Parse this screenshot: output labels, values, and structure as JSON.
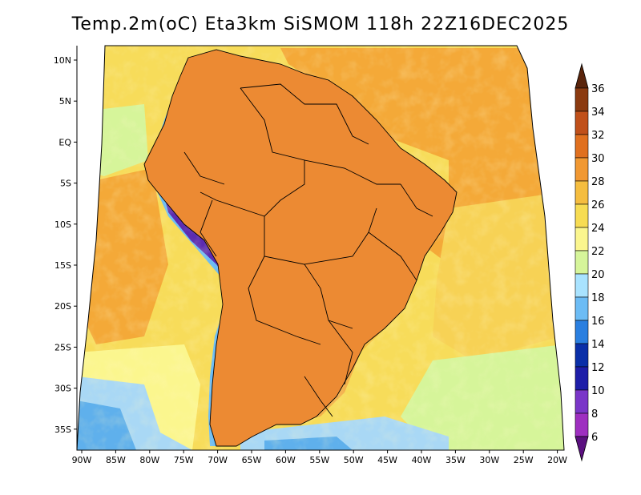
{
  "title": "Temp.2m(oC) Eta3km SiSMOM 118h 22Z16DEC2025",
  "y_ticks": [
    "10N",
    "5N",
    "EQ",
    "5S",
    "10S",
    "15S",
    "20S",
    "25S",
    "30S",
    "35S"
  ],
  "x_ticks": [
    "90W",
    "85W",
    "80W",
    "75W",
    "70W",
    "65W",
    "60W",
    "55W",
    "50W",
    "45W",
    "40W",
    "35W",
    "30W",
    "25W",
    "20W"
  ],
  "colorbar": {
    "labels": [
      "36",
      "34",
      "32",
      "30",
      "28",
      "26",
      "24",
      "22",
      "20",
      "18",
      "16",
      "14",
      "12",
      "10",
      "8",
      "6"
    ],
    "colors": [
      "#6b2b0b",
      "#8b3a10",
      "#c0501a",
      "#e0701f",
      "#f19832",
      "#f5bd3f",
      "#f7dc52",
      "#fbf68e",
      "#d6f59a",
      "#a9e3ff",
      "#6cbcf5",
      "#2a7fe0",
      "#0a2fa8",
      "#1e1ea8",
      "#7a36c8",
      "#9e2fc0",
      "#6e1a8a"
    ],
    "upper_arrow_color": "#5a240b",
    "lower_arrow_color": "#5b1080"
  },
  "colors": {
    "ocean_warm": "#f4a938",
    "ocean_mild": "#f7dc5a",
    "ocean_cool": "#fbf68e",
    "ocean_cold": "#a9d8f5",
    "ocean_colder": "#5fb0ec",
    "land_hot": "#d9692a",
    "land_warm": "#ec8a33",
    "land_mild": "#f3b04a",
    "andes_cold": "#5b2bb0",
    "andes_cool": "#6cbcf5",
    "border": "#000000"
  }
}
